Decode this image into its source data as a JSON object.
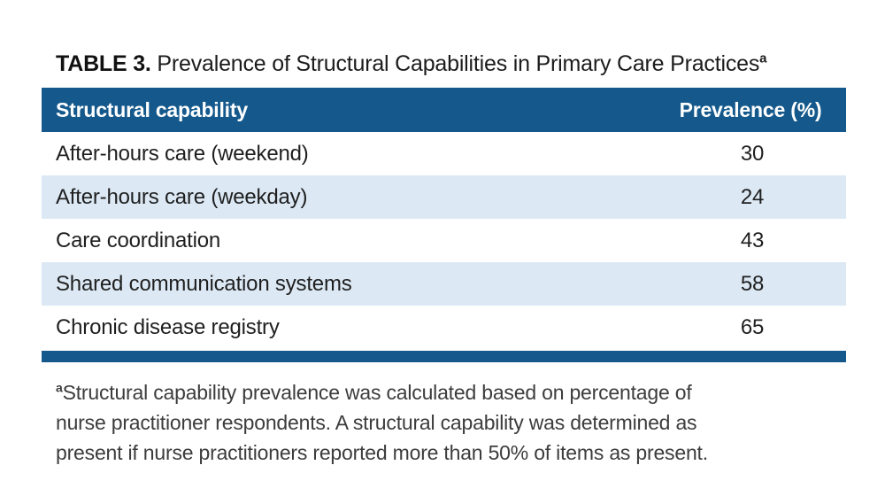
{
  "title": {
    "label": "TABLE 3.",
    "text": " Prevalence of Structural Capabilities in Primary Care Practices",
    "footnote_marker": "a"
  },
  "table": {
    "columns": [
      "Structural capability",
      "Prevalence (%)"
    ],
    "rows": [
      {
        "capability": "After-hours care (weekend)",
        "prevalence": "30"
      },
      {
        "capability": "After-hours care (weekday)",
        "prevalence": "24"
      },
      {
        "capability": "Care coordination",
        "prevalence": "43"
      },
      {
        "capability": "Shared communication systems",
        "prevalence": "58"
      },
      {
        "capability": "Chronic disease registry",
        "prevalence": "65"
      }
    ],
    "colors": {
      "header_bg": "#15598C",
      "header_text": "#FFFFFF",
      "alt_row_bg": "#DCE9F5",
      "bottom_bar": "#15598C"
    }
  },
  "footnote": {
    "marker": "a",
    "lines": [
      "Structural capability prevalence was calculated based on percentage of",
      "nurse practitioner respondents. A structural capability was determined as",
      "present if nurse practitioners reported more than 50% of items as present."
    ]
  }
}
